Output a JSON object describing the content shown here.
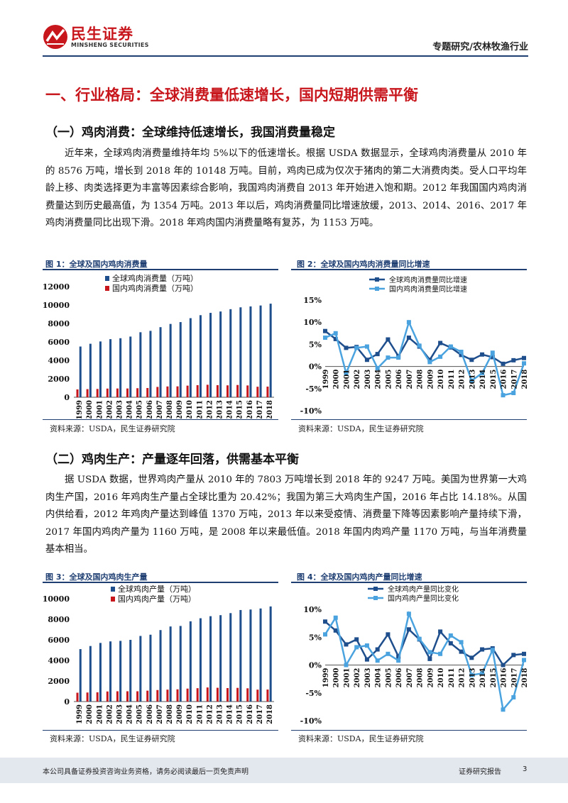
{
  "header": {
    "logo_cn": "民生证券",
    "logo_en": "MINSHENG SECURITIES",
    "section": "专题研究/农林牧渔行业"
  },
  "h1": "一、行业格局：全球消费量低速增长，国内短期供需平衡",
  "section1": {
    "title": "（一）鸡肉消费：全球维持低速增长，我国消费量稳定",
    "paragraph": "近年来，全球鸡肉消费量维持年均 5%以下的低速增长。根据 USDA 数据显示，全球鸡肉消费量从 2010 年的 8576 万吨，增长到 2018 年的 10148 万吨。目前，鸡肉已成为仅次于猪肉的第二大消费肉类。受人口平均年龄上移、肉类选择更为丰富等因素综合影响，我国鸡肉消费自 2013 年开始进入饱和期。2012 年我国国内鸡肉消费量达到历史最高值，为 1354 万吨。2013 年以后，鸡肉消费量同比增速放缓，2013、2014、2016、2017 年鸡肉消费量同比出现下滑。2018 年鸡肉国内消费量略有复苏，为 1153 万吨。"
  },
  "section2": {
    "title": "（二）鸡肉生产：产量逐年回落，供需基本平衡",
    "paragraph": "据 USDA 数据，世界鸡肉产量从 2010 年的 7803 万吨增长到 2018 年的 9247 万吨。美国为世界第一大鸡肉生产国，2016 年鸡肉生产量占全球比重为 20.42%；我国为第三大鸡肉生产国，2016 年占比 14.18%。从国内供给看，2012 年鸡肉产量达到峰值 1370 万吨，2013 年以来受疫情、消费量下降等因素影响产量持续下滑，2017 年国内鸡肉产量为 1160 万吨，是 2008 年以来最低值。2018 年国内肉鸡产量 1170 万吨，与当年消费量基本相当。"
  },
  "figures": {
    "fig1_title": "图 1：全球及国内鸡肉消费量",
    "fig2_title": "图 2：全球及国内鸡肉消费量同比增速",
    "fig3_title": "图 3：全球及国内鸡肉生产量",
    "fig4_title": "图 4：全球及国内鸡肉产量同比增速",
    "source": "资料来源：USDA，民生证券研究院"
  },
  "chart_data": [
    {
      "type": "bar",
      "title": "图 1：全球及国内鸡肉消费量",
      "categories": [
        "1999",
        "2000",
        "2001",
        "2002",
        "2003",
        "2004",
        "2005",
        "2006",
        "2007",
        "2008",
        "2009",
        "2010",
        "2011",
        "2012",
        "2013",
        "2014",
        "2015",
        "2016",
        "2017",
        "2018"
      ],
      "ylim": [
        0,
        12000
      ],
      "yticks": [
        "0",
        "2000",
        "4000",
        "6000",
        "8000",
        "10000",
        "12000"
      ],
      "legend": "top-left",
      "series": [
        {
          "name": "全球鸡肉消费量（万吨）",
          "color": "#1f4e8c",
          "values": [
            5500,
            5800,
            6050,
            6300,
            6400,
            6580,
            7050,
            7200,
            7600,
            7950,
            8150,
            8576,
            8900,
            9150,
            9300,
            9550,
            9750,
            9850,
            9950,
            10148
          ]
        },
        {
          "name": "国内鸡肉消费量（万吨）",
          "color": "#c8161d",
          "values": [
            850,
            880,
            900,
            940,
            950,
            950,
            980,
            1000,
            1120,
            1170,
            1180,
            1260,
            1310,
            1354,
            1310,
            1290,
            1330,
            1280,
            1140,
            1153
          ]
        }
      ]
    },
    {
      "type": "line",
      "title": "图 2：全球及国内鸡肉消费量同比增速",
      "x": [
        "1999",
        "2000",
        "2001",
        "2002",
        "2003",
        "2004",
        "2005",
        "2006",
        "2007",
        "2008",
        "2009",
        "2010",
        "2011",
        "2012",
        "2013",
        "2014",
        "2015",
        "2016",
        "2017",
        "2018"
      ],
      "ylim": [
        -10,
        15
      ],
      "yticks": [
        "-10%",
        "-5%",
        "0%",
        "5%",
        "10%",
        "15%"
      ],
      "legend": "top-left",
      "series": [
        {
          "name": "全球鸡肉消费量同比增速",
          "color": "#1f4e8c",
          "values": [
            8.0,
            6.2,
            4.2,
            4.4,
            1.5,
            2.8,
            6.1,
            2.3,
            6.5,
            4.5,
            1.5,
            5.3,
            4.3,
            2.6,
            1.5,
            2.7,
            2.1,
            0.6,
            1.4,
            1.9
          ]
        },
        {
          "name": "国内鸡肉消费量同比增速",
          "color": "#4aa3df",
          "values": [
            6.5,
            7.5,
            -1.5,
            4.2,
            4.5,
            -0.4,
            2.0,
            2.0,
            10.0,
            4.7,
            1.0,
            2.2,
            4.5,
            3.3,
            -3.2,
            -1.5,
            3.1,
            -6.5,
            -6.0,
            0.7
          ]
        }
      ]
    },
    {
      "type": "bar",
      "title": "图 3：全球及国内鸡肉生产量",
      "categories": [
        "1999",
        "2000",
        "2001",
        "2002",
        "2003",
        "2004",
        "2005",
        "2006",
        "2007",
        "2008",
        "2009",
        "2010",
        "2011",
        "2012",
        "2013",
        "2014",
        "2015",
        "2016",
        "2017",
        "2018"
      ],
      "ylim": [
        0,
        10000
      ],
      "yticks": [
        "0",
        "2000",
        "4000",
        "6000",
        "8000",
        "10000"
      ],
      "legend": "top-left",
      "series": [
        {
          "name": "全球鸡肉产量（万吨）",
          "color": "#1f4e8c",
          "values": [
            5100,
            5400,
            5700,
            5850,
            5900,
            6000,
            6380,
            6500,
            6950,
            7300,
            7350,
            7803,
            8100,
            8300,
            8400,
            8600,
            8900,
            8950,
            9050,
            9247
          ]
        },
        {
          "name": "国内鸡肉产量（万吨）",
          "color": "#c8161d",
          "values": [
            860,
            880,
            900,
            980,
            1000,
            1000,
            1000,
            1060,
            1120,
            1160,
            1190,
            1260,
            1300,
            1370,
            1340,
            1310,
            1330,
            1290,
            1160,
            1170
          ]
        }
      ]
    },
    {
      "type": "line",
      "title": "图 4：全球及国内鸡肉产量同比增速",
      "x": [
        "1999",
        "2000",
        "2001",
        "2002",
        "2003",
        "2004",
        "2005",
        "2006",
        "2007",
        "2008",
        "2009",
        "2010",
        "2011",
        "2012",
        "2013",
        "2014",
        "2015",
        "2016",
        "2017",
        "2018"
      ],
      "ylim": [
        -10,
        10
      ],
      "yticks": [
        "-10%",
        "-5%",
        "0%",
        "5%",
        "10%"
      ],
      "legend": "top-right",
      "series": [
        {
          "name": "全球鸡肉产量同比变化",
          "color": "#1f4e8c",
          "values": [
            7.8,
            6.2,
            3.7,
            4.6,
            1.0,
            2.8,
            5.5,
            1.5,
            6.4,
            4.6,
            1.1,
            6.0,
            3.9,
            2.4,
            1.3,
            2.8,
            3.0,
            0.0,
            1.8,
            2.0
          ]
        },
        {
          "name": "国内鸡肉产量同比变化",
          "color": "#4aa3df",
          "values": [
            5.5,
            8.5,
            0.0,
            3.2,
            3.5,
            0.8,
            2.0,
            0.8,
            9.2,
            4.7,
            2.3,
            2.0,
            5.3,
            4.1,
            -1.8,
            -1.5,
            2.7,
            -8.0,
            -5.8,
            0.9
          ]
        }
      ]
    }
  ],
  "footer": {
    "disclaimer": "本公司具备证券投资咨询业务资格，请务必阅读最后一页免责声明",
    "report_type": "证券研究报告",
    "page": "3"
  }
}
